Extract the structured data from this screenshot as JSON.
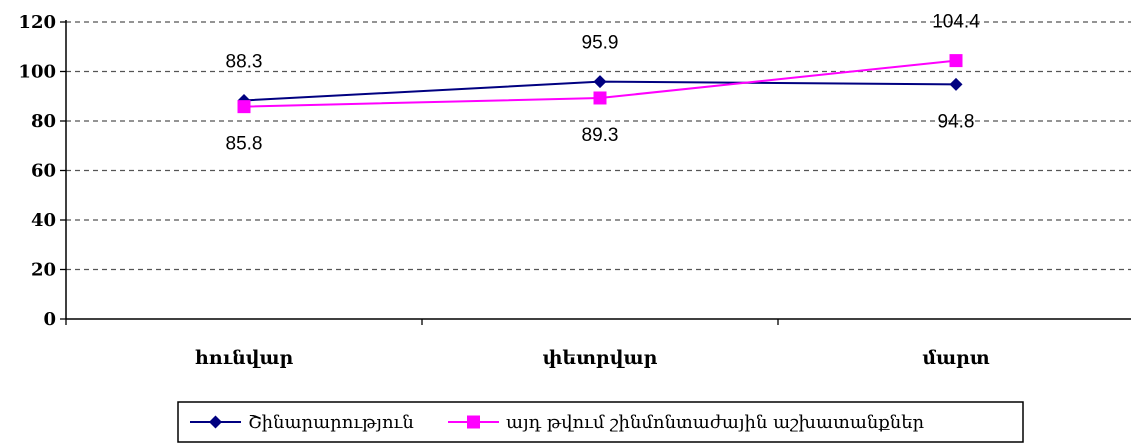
{
  "chart_data": {
    "type": "line",
    "categories": [
      "հունվար",
      "փետրվար",
      "մարտ"
    ],
    "ylim": [
      0,
      120
    ],
    "yticks": [
      0,
      20,
      40,
      60,
      80,
      100,
      120
    ],
    "grid": true,
    "legend_position": "bottom",
    "series": [
      {
        "name": "Շինարարություն",
        "values": [
          88.3,
          95.9,
          94.8
        ],
        "labels": [
          "88.3",
          "95.9",
          "94.8"
        ],
        "label_side": [
          "above",
          "above",
          "below"
        ],
        "color": "#000080",
        "marker": "diamond"
      },
      {
        "name": "այդ թվում շինմոնտաժային աշխատանքներ",
        "values": [
          85.8,
          89.3,
          104.4
        ],
        "labels": [
          "85.8",
          "89.3",
          "104.4"
        ],
        "label_side": [
          "below",
          "below",
          "above"
        ],
        "color": "#ff00ff",
        "marker": "square"
      }
    ]
  }
}
